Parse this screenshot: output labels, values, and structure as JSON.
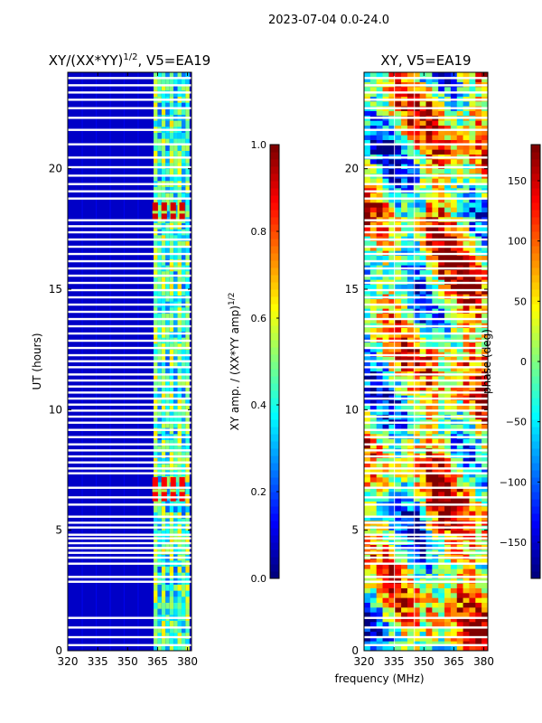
{
  "suptitle": "2023-07-04 0.0-24.0",
  "xlabel_shared": "frequency (MHz)",
  "chart_data": [
    {
      "type": "heatmap",
      "title_prefix": "XY/(XX*YY)",
      "title_sup": "1/2",
      "title_suffix": ", V5=EA19",
      "ylabel": "UT (hours)",
      "xlim": [
        320,
        382
      ],
      "ylim": [
        0,
        24
      ],
      "xticks": [
        320,
        335,
        350,
        365,
        380
      ],
      "yticks": [
        0,
        5,
        10,
        15,
        20
      ],
      "colorbar": {
        "label_prefix": "XY amp. / (XX*YY amp)",
        "label_sup": "1/2",
        "range": [
          0.0,
          1.0
        ],
        "ticks": [
          0.0,
          0.2,
          0.4,
          0.6,
          0.8,
          1.0
        ],
        "tick_labels": [
          "0.0",
          "0.2",
          "0.4",
          "0.6",
          "0.8",
          "1.0"
        ],
        "colormap": "jet"
      },
      "features": [
        {
          "kind": "low-amp",
          "freq_range": [
            320,
            362
          ],
          "value": 0.08
        },
        {
          "kind": "high-amp-bands",
          "freq_range": [
            362,
            382
          ],
          "value": 0.45
        },
        {
          "kind": "peak",
          "ut_range": [
            17.9,
            18.6
          ],
          "freq_range": [
            362,
            380
          ],
          "value": 0.92
        },
        {
          "kind": "peak",
          "ut_range": [
            6.2,
            7.2
          ],
          "freq_range": [
            362,
            378
          ],
          "value": 0.88
        }
      ]
    },
    {
      "type": "heatmap",
      "title": "XY, V5=EA19",
      "xlim": [
        320,
        382
      ],
      "ylim": [
        0,
        24
      ],
      "xticks": [
        320,
        335,
        350,
        365,
        380
      ],
      "yticks": [
        0,
        5,
        10,
        15,
        20
      ],
      "colorbar": {
        "label": "phase (deg)",
        "range": [
          -180,
          180
        ],
        "ticks": [
          -150,
          -100,
          -50,
          0,
          50,
          100,
          150
        ],
        "tick_labels": [
          "−150",
          "−100",
          "−50",
          "0",
          "50",
          "100",
          "150"
        ],
        "colormap": "jet"
      }
    }
  ],
  "data_gaps_ut": [
    0.22,
    0.55,
    0.95,
    1.35,
    2.85,
    3.05,
    3.6,
    3.85,
    4.05,
    4.25,
    4.45,
    4.65,
    4.8,
    5.1,
    5.3,
    5.55,
    6.05,
    6.35,
    6.75,
    7.35,
    7.55,
    7.8,
    8.05,
    8.3,
    8.55,
    8.85,
    9.15,
    9.45,
    9.7,
    9.95,
    10.2,
    10.45,
    10.7,
    10.95,
    11.2,
    11.45,
    11.75,
    12.0,
    12.25,
    12.55,
    12.85,
    13.15,
    13.45,
    13.75,
    14.05,
    14.35,
    14.65,
    14.95,
    15.25,
    15.55,
    15.85,
    16.15,
    16.45,
    16.75,
    17.05,
    17.35,
    17.6,
    17.85,
    18.75,
    19.05,
    19.35,
    19.7,
    20.05,
    20.45,
    21.0,
    21.6,
    22.1,
    22.5,
    22.85,
    23.15,
    23.45,
    23.75
  ],
  "colors": {
    "frame": "#000000",
    "background": "#ffffff"
  }
}
